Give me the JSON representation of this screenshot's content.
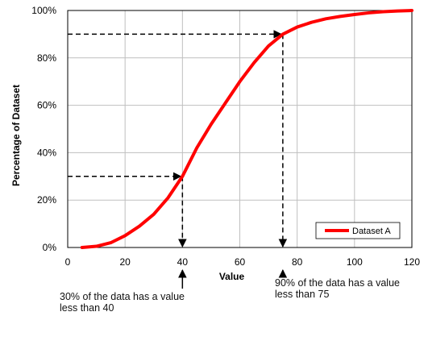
{
  "chart_data": {
    "type": "line",
    "title": "",
    "xlabel": "Value",
    "ylabel": "Percentage of Dataset",
    "xlim": [
      0,
      120
    ],
    "ylim": [
      0,
      100
    ],
    "x_ticks": [
      0,
      20,
      40,
      60,
      80,
      100,
      120
    ],
    "y_ticks": [
      0,
      20,
      40,
      60,
      80,
      100
    ],
    "x_tick_labels": [
      "0",
      "20",
      "40",
      "60",
      "80",
      "100",
      "120"
    ],
    "y_tick_labels": [
      "0%",
      "20%",
      "40%",
      "60%",
      "80%",
      "100%"
    ],
    "grid": true,
    "legend_position": "bottom-right",
    "series": [
      {
        "name": "Dataset A",
        "color": "#ff0000",
        "x": [
          5,
          10,
          15,
          20,
          25,
          30,
          35,
          40,
          45,
          50,
          55,
          60,
          65,
          70,
          75,
          80,
          85,
          90,
          95,
          100,
          105,
          110,
          115,
          120
        ],
        "y": [
          0,
          0.5,
          2,
          5,
          9,
          14,
          21,
          30,
          42,
          52,
          61,
          70,
          78,
          85,
          90,
          93,
          95,
          96.5,
          97.5,
          98.3,
          99,
          99.5,
          99.8,
          100
        ]
      }
    ],
    "annotations": [
      {
        "text_lines": [
          "30% of the data has a value",
          "less than 40"
        ],
        "x": 40,
        "y": 30
      },
      {
        "text_lines": [
          "90% of the data has a value",
          "less than 75"
        ],
        "x": 75,
        "y": 90
      }
    ]
  }
}
